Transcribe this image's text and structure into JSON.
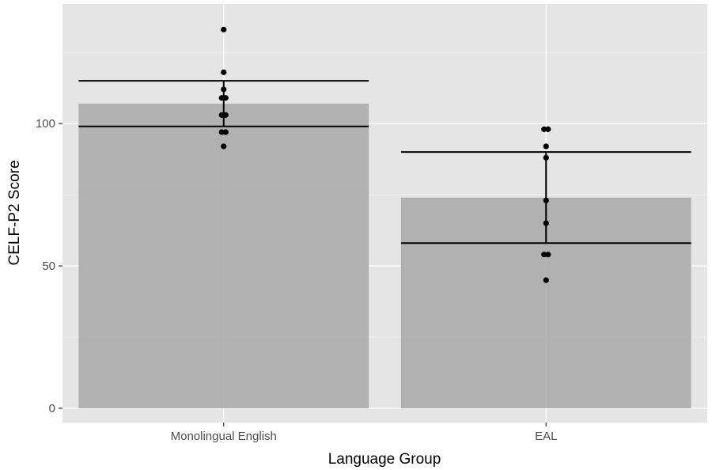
{
  "chart_data": {
    "type": "bar",
    "title": "",
    "xlabel": "Language Group",
    "ylabel": "CELF-P2 Score",
    "categories": [
      "Monolingual English",
      "EAL"
    ],
    "values": [
      107,
      74
    ],
    "error_bars": [
      {
        "low": 99,
        "high": 115
      },
      {
        "low": 58,
        "high": 90
      }
    ],
    "points": [
      [
        133,
        118,
        112,
        109,
        109,
        103,
        103,
        97,
        97,
        92
      ],
      [
        98,
        98,
        92,
        88,
        73,
        65,
        54,
        54,
        45
      ]
    ],
    "yticks": [
      0,
      50,
      100
    ],
    "ytick_labels": [
      "0",
      "50",
      "100"
    ],
    "ylim": [
      -5,
      142
    ],
    "grid": true,
    "legend": "none",
    "colors": {
      "panel": "#e5e5e5",
      "grid": "#ffffff",
      "bar": "#adadad",
      "point": "#000000",
      "errorbar": "#000000"
    }
  }
}
